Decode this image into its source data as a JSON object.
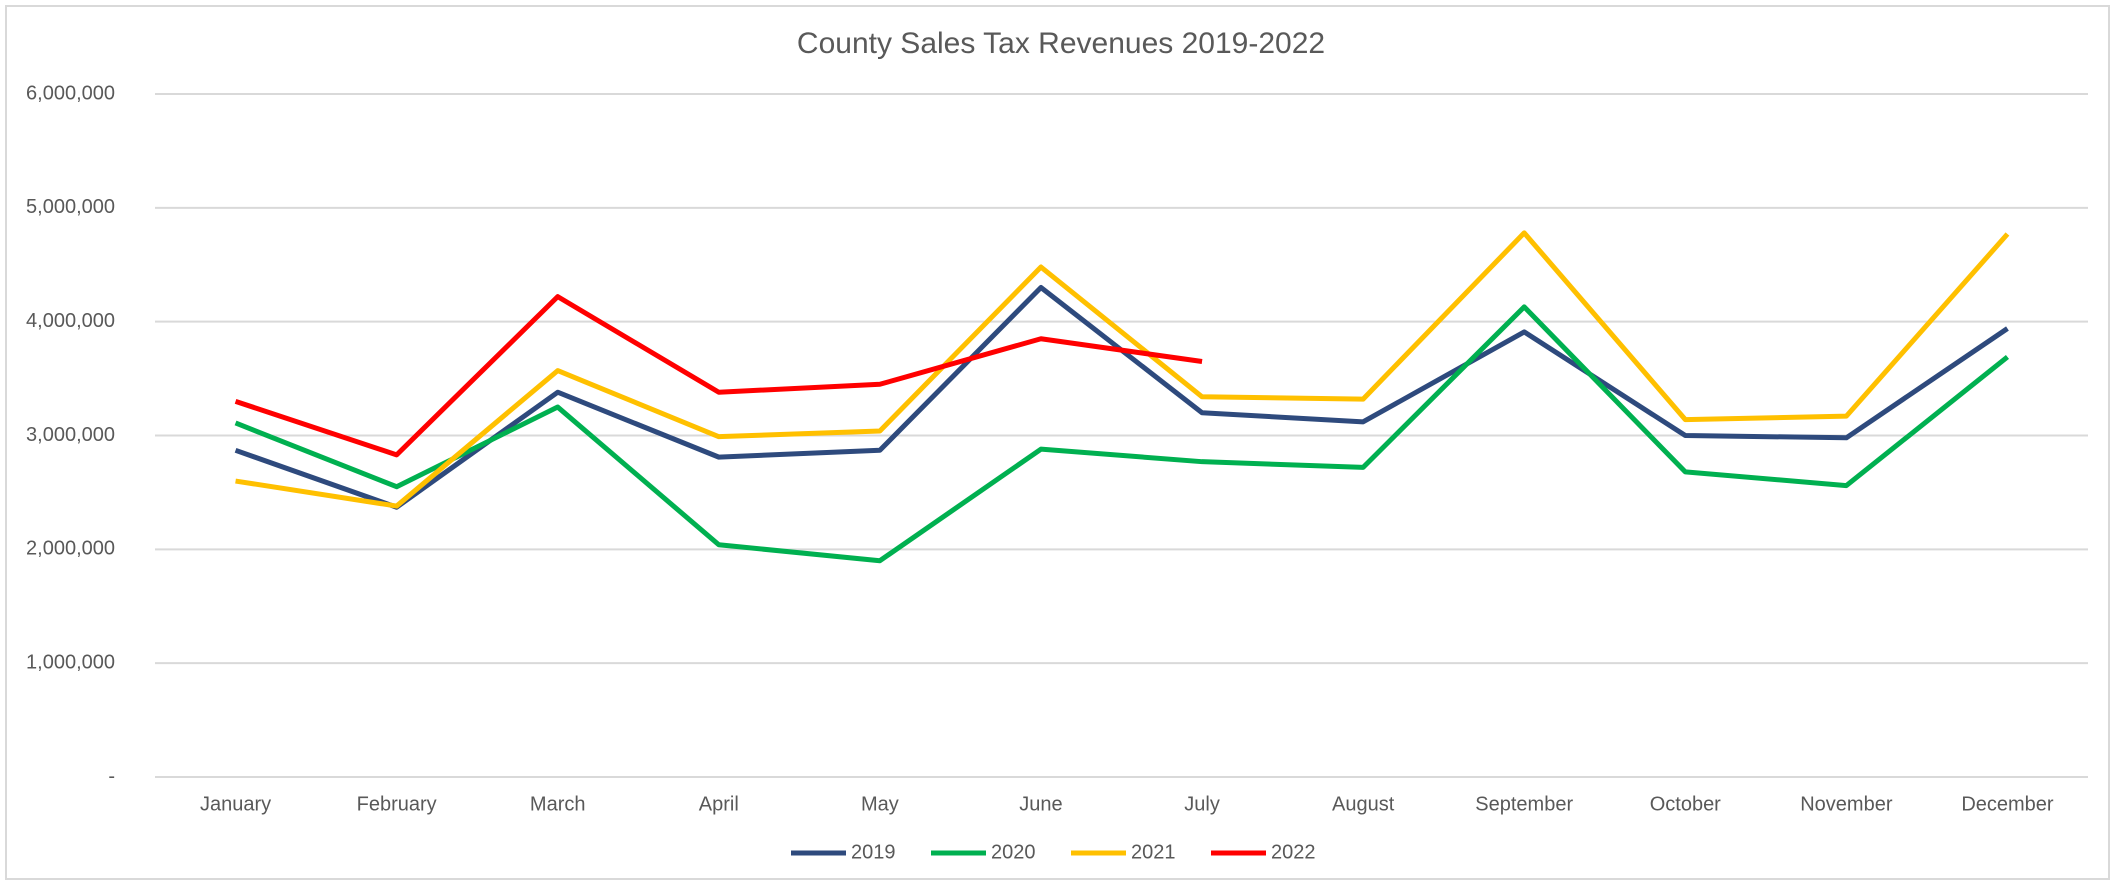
{
  "chart_data": {
    "type": "line",
    "title": "County Sales Tax Revenues 2019-2022",
    "categories": [
      "January",
      "February",
      "March",
      "April",
      "May",
      "June",
      "July",
      "August",
      "September",
      "October",
      "November",
      "December"
    ],
    "series": [
      {
        "name": "2019",
        "color": "#2e4a7d",
        "values": [
          2870000,
          2370000,
          3380000,
          2810000,
          2870000,
          4300000,
          3200000,
          3120000,
          3910000,
          3000000,
          2980000,
          3940000
        ]
      },
      {
        "name": "2020",
        "color": "#00b050",
        "values": [
          3110000,
          2550000,
          3250000,
          2040000,
          1900000,
          2880000,
          2770000,
          2720000,
          4130000,
          2680000,
          2560000,
          3690000
        ]
      },
      {
        "name": "2021",
        "color": "#ffc000",
        "values": [
          2600000,
          2380000,
          3570000,
          2990000,
          3040000,
          4480000,
          3340000,
          3320000,
          4780000,
          3140000,
          3170000,
          4770000
        ]
      },
      {
        "name": "2022",
        "color": "#ff0000",
        "values": [
          3300000,
          2830000,
          4220000,
          3380000,
          3450000,
          3850000,
          3650000,
          null,
          null,
          null,
          null,
          null
        ]
      }
    ],
    "ylim": [
      0,
      6000000
    ],
    "yticks": [
      {
        "value": 0,
        "label": "-"
      },
      {
        "value": 1000000,
        "label": "1,000,000"
      },
      {
        "value": 2000000,
        "label": "2,000,000"
      },
      {
        "value": 3000000,
        "label": "3,000,000"
      },
      {
        "value": 4000000,
        "label": "4,000,000"
      },
      {
        "value": 5000000,
        "label": "5,000,000"
      },
      {
        "value": 6000000,
        "label": "6,000,000"
      }
    ],
    "grid": true,
    "legend": "bottom"
  }
}
